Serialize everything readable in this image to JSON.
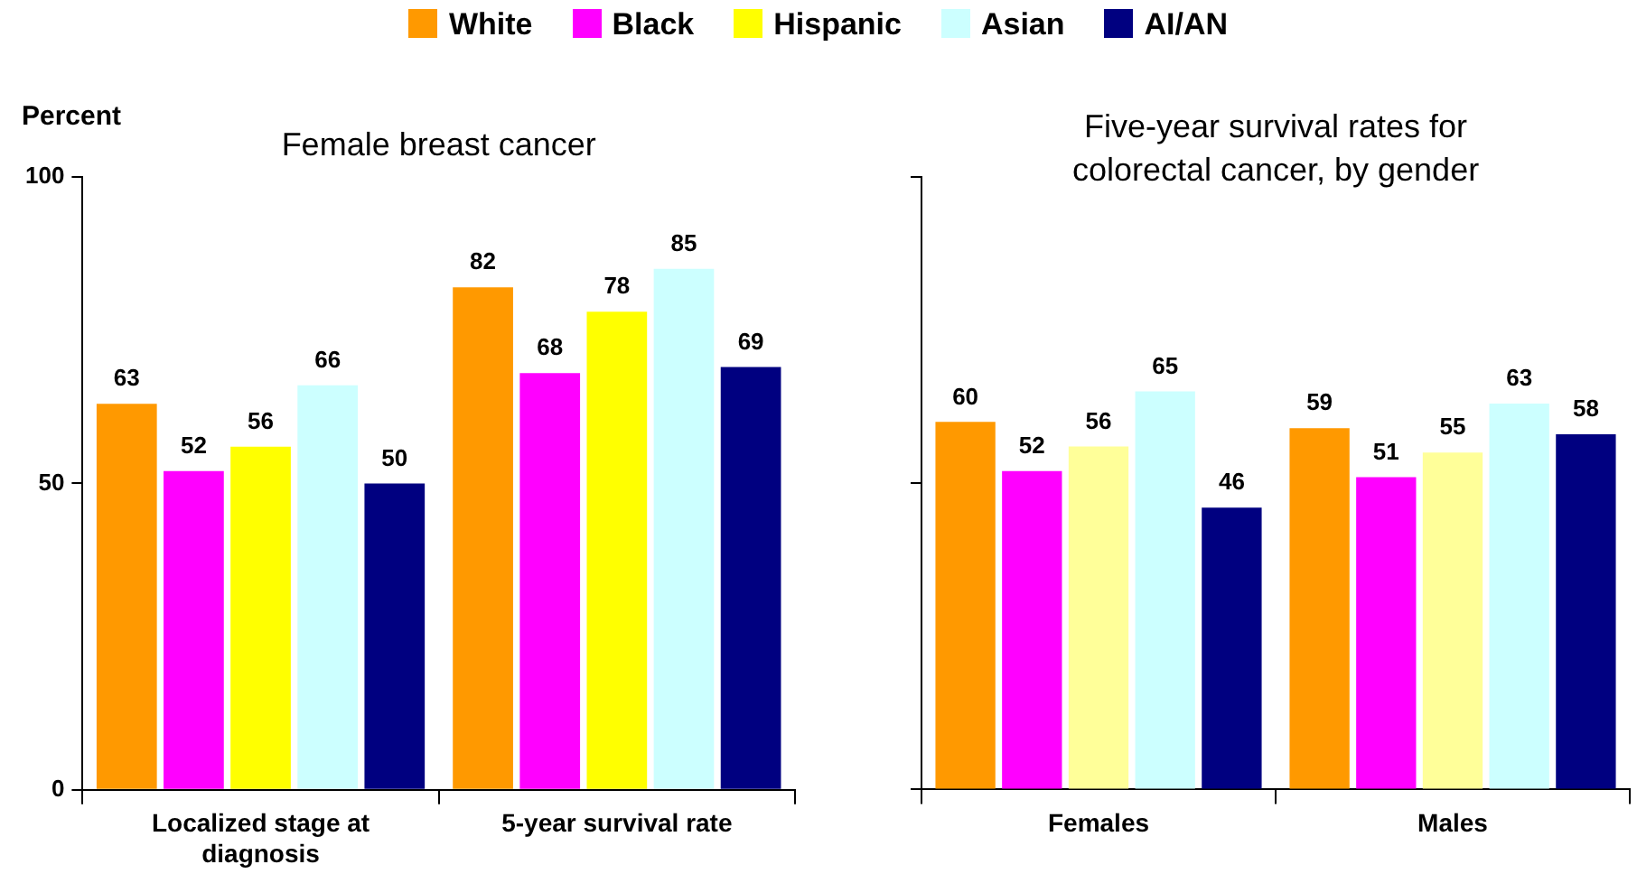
{
  "chart_data": [
    {
      "type": "bar",
      "title": "Female breast cancer",
      "ylabel": "Percent",
      "categories": [
        "Localized stage at diagnosis",
        "5-year survival rate"
      ],
      "series": [
        {
          "name": "White",
          "color": "#ff9900",
          "values": [
            63,
            82
          ]
        },
        {
          "name": "Black",
          "color": "#ff00ff",
          "values": [
            52,
            68
          ]
        },
        {
          "name": "Hispanic",
          "color": "#ffff00",
          "values": [
            56,
            78
          ]
        },
        {
          "name": "Asian",
          "color": "#ccffff",
          "values": [
            66,
            85
          ]
        },
        {
          "name": "AI/AN",
          "color": "#000080",
          "values": [
            50,
            69
          ]
        }
      ],
      "ylim": [
        0,
        100
      ],
      "yticks": [
        0,
        50,
        100
      ],
      "grid": false,
      "legend": "top",
      "data_labels": true
    },
    {
      "type": "bar",
      "title": "Five-year survival rates for colorectal cancer, by gender",
      "categories": [
        "Females",
        "Males"
      ],
      "series": [
        {
          "color": "#ff9900",
          "values": [
            60,
            59
          ]
        },
        {
          "color": "#ff00ff",
          "values": [
            52,
            51
          ]
        },
        {
          "color": "#ffff99",
          "values": [
            56,
            55
          ]
        },
        {
          "color": "#ccffff",
          "values": [
            65,
            63
          ]
        },
        {
          "color": "#000080",
          "values": [
            46,
            58
          ]
        }
      ],
      "ylim": [
        0,
        100
      ],
      "yticks": [
        0,
        50,
        100
      ],
      "grid": false,
      "tick_labels": "x",
      "data_labels": true
    }
  ]
}
